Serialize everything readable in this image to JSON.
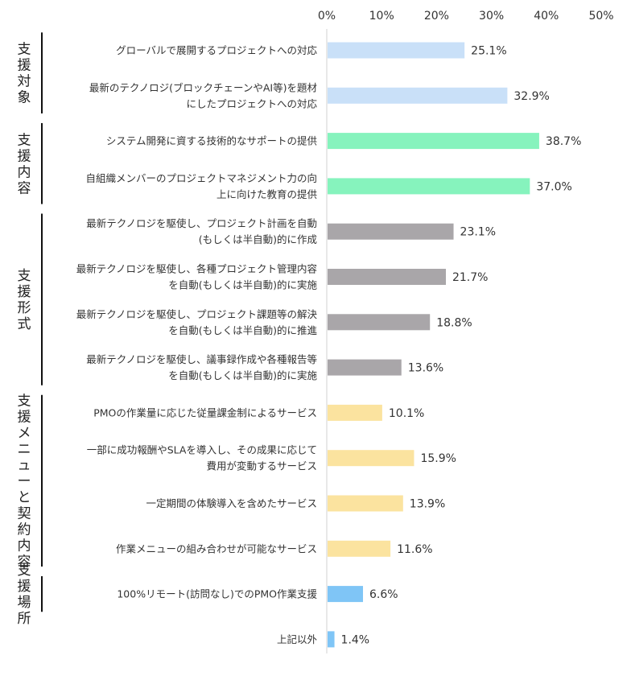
{
  "chart_data": {
    "type": "bar",
    "orientation": "horizontal",
    "xlim": [
      0,
      50
    ],
    "x_ticks": [
      "0%",
      "10%",
      "20%",
      "30%",
      "40%",
      "50%"
    ],
    "x_tick_values": [
      0,
      10,
      20,
      30,
      40,
      50
    ],
    "axis_position": "top",
    "grid": false,
    "value_suffix": "%",
    "colors": {
      "target": "#c9e0f8",
      "content": "#86f3bd",
      "form": "#a9a6a9",
      "menu": "#fbe39f",
      "location": "#7fc5f6",
      "other": "#7fc5f6"
    },
    "groups": [
      {
        "key": "target",
        "label": "支援対象",
        "items": [
          0,
          1
        ]
      },
      {
        "key": "content",
        "label": "支援内容",
        "items": [
          2,
          3
        ]
      },
      {
        "key": "form",
        "label": "支援形式",
        "items": [
          4,
          5,
          6,
          7
        ]
      },
      {
        "key": "menu",
        "label": "支援メニューと契約内容",
        "items": [
          8,
          9,
          10,
          11
        ]
      },
      {
        "key": "location",
        "label": "支援場所",
        "items": [
          12
        ]
      }
    ],
    "categories": [
      {
        "lines": [
          "グローバルで展開するプロジェクトへの対応"
        ],
        "value": 25.1,
        "group": "target"
      },
      {
        "lines": [
          "最新のテクノロジ(ブロックチェーンやAI等)を題材",
          "にしたプロジェクトへの対応"
        ],
        "value": 32.9,
        "group": "target"
      },
      {
        "lines": [
          "システム開発に資する技術的なサポートの提供"
        ],
        "value": 38.7,
        "group": "content"
      },
      {
        "lines": [
          "自組織メンバーのプロジェクトマネジメント力の向",
          "上に向けた教育の提供"
        ],
        "value": 37.0,
        "group": "content"
      },
      {
        "lines": [
          "最新テクノロジを駆使し、プロジェクト計画を自動",
          "(もしくは半自動)的に作成"
        ],
        "value": 23.1,
        "group": "form"
      },
      {
        "lines": [
          "最新テクノロジを駆使し、各種プロジェクト管理内容",
          "を自動(もしくは半自動)的に実施"
        ],
        "value": 21.7,
        "group": "form"
      },
      {
        "lines": [
          "最新テクノロジを駆使し、プロジェクト課題等の解決",
          "を自動(もしくは半自動)的に推進"
        ],
        "value": 18.8,
        "group": "form"
      },
      {
        "lines": [
          "最新テクノロジを駆使し、議事録作成や各種報告等",
          "を自動(もしくは半自動)的に実施"
        ],
        "value": 13.6,
        "group": "form"
      },
      {
        "lines": [
          "PMOの作業量に応じた従量課金制によるサービス"
        ],
        "value": 10.1,
        "group": "menu"
      },
      {
        "lines": [
          "一部に成功報酬やSLAを導入し、その成果に応じて",
          "費用が変動するサービス"
        ],
        "value": 15.9,
        "group": "menu"
      },
      {
        "lines": [
          "一定期間の体験導入を含めたサービス"
        ],
        "value": 13.9,
        "group": "menu"
      },
      {
        "lines": [
          "作業メニューの組み合わせが可能なサービス"
        ],
        "value": 11.6,
        "group": "menu"
      },
      {
        "lines": [
          "100%リモート(訪問なし)でのPMO作業支援"
        ],
        "value": 6.6,
        "group": "location"
      },
      {
        "lines": [
          "上記以外"
        ],
        "value": 1.4,
        "group": "other"
      }
    ]
  }
}
